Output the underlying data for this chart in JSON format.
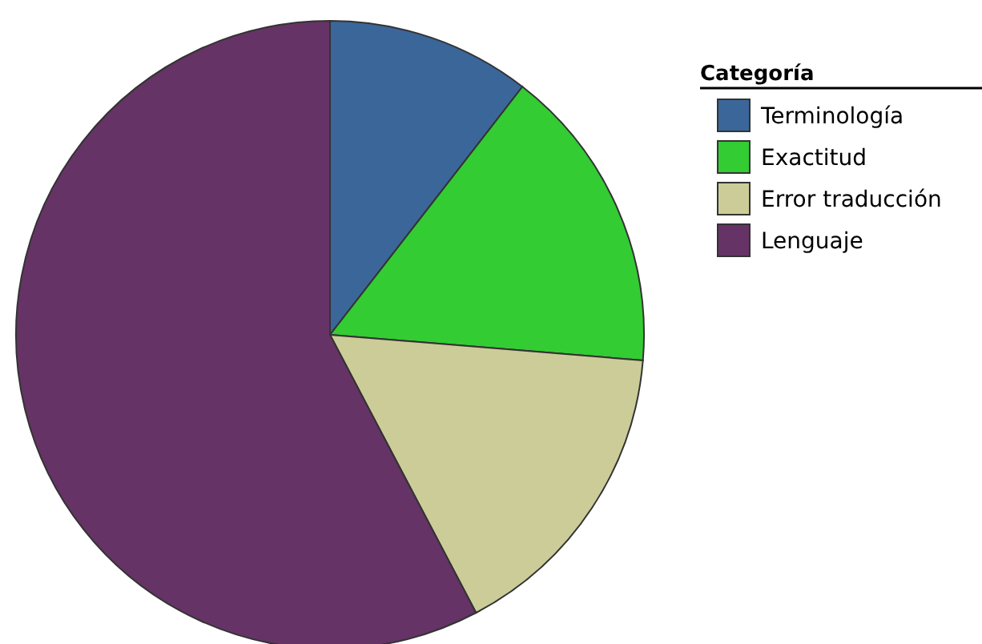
{
  "chart_data": {
    "type": "pie",
    "legend_title": "Categoría",
    "legend": "top right",
    "categories": [
      "Terminología",
      "Exactitud",
      "Error traducción",
      "Lenguaje"
    ],
    "values": [
      10.5,
      15.8,
      16,
      57.7
    ],
    "colors": [
      "#3b6699",
      "#33cc33",
      "#cccc99",
      "#663366"
    ]
  }
}
